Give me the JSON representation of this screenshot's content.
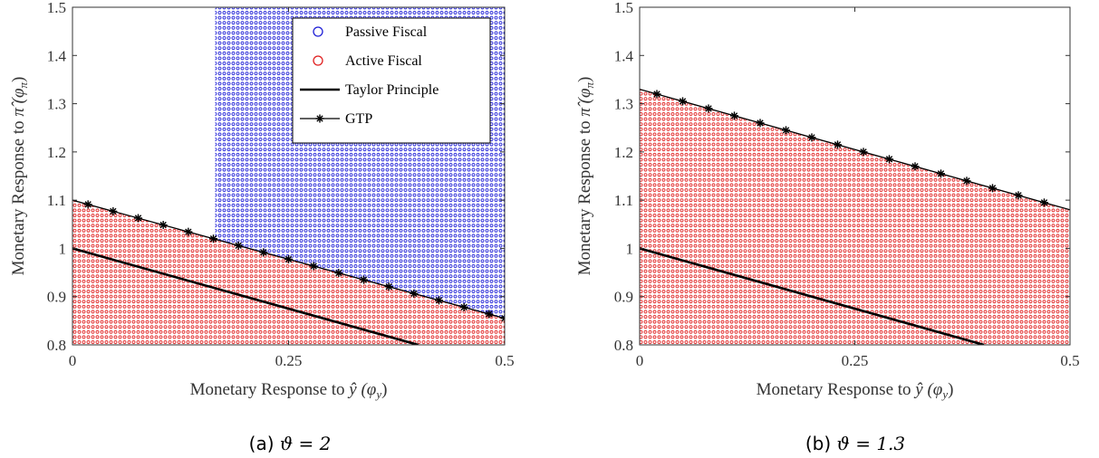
{
  "colors": {
    "passive": "#1f1fd6",
    "active": "#e01f1f",
    "line": "#000000",
    "axis": "#333333"
  },
  "chart_data": [
    {
      "type": "scatter",
      "caption_prefix": "(a)",
      "caption_math": "ϑ = 2",
      "xlabel_text": "Monetary Response to ",
      "xlabel_sym": "ŷ",
      "xlabel_paren": "(φ",
      "xlabel_sub": "y",
      "ylabel_text": "Monetary Response to ",
      "ylabel_sym": "π̂",
      "ylabel_paren": "(φ",
      "ylabel_sub": "π",
      "xlim": [
        0,
        0.5
      ],
      "ylim": [
        0.8,
        1.5
      ],
      "x_ticks": [
        "0",
        "0.25",
        "0.5"
      ],
      "x_tick_values": [
        0,
        0.25,
        0.5
      ],
      "y_ticks": [
        "0.8",
        "0.9",
        "1",
        "1.1",
        "1.2",
        "1.3",
        "1.4",
        "1.5"
      ],
      "y_tick_values": [
        0.8,
        0.9,
        1.0,
        1.1,
        1.2,
        1.3,
        1.4,
        1.5
      ],
      "region_boundary": {
        "description": "active below GTP line, passive above for phi_y >= 0.165",
        "passive_x_min": 0.165
      },
      "gtp_line": {
        "intercept": 1.1,
        "slope": -0.49
      },
      "gtp_markers_x": [
        0.018,
        0.047,
        0.076,
        0.105,
        0.134,
        0.163,
        0.192,
        0.221,
        0.25,
        0.279,
        0.308,
        0.337,
        0.366,
        0.395,
        0.424,
        0.453,
        0.482,
        0.5
      ],
      "taylor_line": {
        "intercept": 1.0,
        "slope": -0.5
      },
      "legend": {
        "placement": "top-right",
        "entries": [
          "Passive Fiscal",
          "Active Fiscal",
          "Taylor Principle",
          "GTP"
        ]
      }
    },
    {
      "type": "scatter",
      "caption_prefix": "(b)",
      "caption_math": "ϑ = 1.3",
      "xlabel_text": "Monetary Response to ",
      "xlabel_sym": "ŷ",
      "xlabel_paren": "(φ",
      "xlabel_sub": "y",
      "ylabel_text": "Monetary Response to ",
      "ylabel_sym": "π̂",
      "ylabel_paren": "(φ",
      "ylabel_sub": "π",
      "xlim": [
        0,
        0.5
      ],
      "ylim": [
        0.8,
        1.5
      ],
      "x_ticks": [
        "0",
        "0.25",
        "0.5"
      ],
      "x_tick_values": [
        0,
        0.25,
        0.5
      ],
      "y_ticks": [
        "0.8",
        "0.9",
        "1",
        "1.1",
        "1.2",
        "1.3",
        "1.4",
        "1.5"
      ],
      "y_tick_values": [
        0.8,
        0.9,
        1.0,
        1.1,
        1.2,
        1.3,
        1.4,
        1.5
      ],
      "region_boundary": {
        "description": "active below GTP line"
      },
      "gtp_line": {
        "intercept": 1.33,
        "slope": -0.5
      },
      "gtp_markers_x": [
        0.02,
        0.05,
        0.08,
        0.11,
        0.14,
        0.17,
        0.2,
        0.23,
        0.26,
        0.29,
        0.32,
        0.35,
        0.38,
        0.41,
        0.44,
        0.47
      ],
      "taylor_line": {
        "intercept": 1.0,
        "slope": -0.5
      }
    }
  ]
}
